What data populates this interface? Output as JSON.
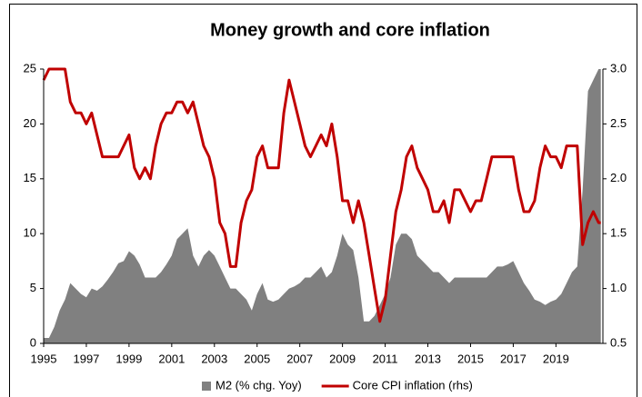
{
  "chart_data": {
    "type": "area-line",
    "title": "Money growth and core inflation",
    "x": [
      1995.0,
      1995.25,
      1995.5,
      1995.75,
      1996.0,
      1996.25,
      1996.5,
      1996.75,
      1997.0,
      1997.25,
      1997.5,
      1997.75,
      1998.0,
      1998.25,
      1998.5,
      1998.75,
      1999.0,
      1999.25,
      1999.5,
      1999.75,
      2000.0,
      2000.25,
      2000.5,
      2000.75,
      2001.0,
      2001.25,
      2001.5,
      2001.75,
      2002.0,
      2002.25,
      2002.5,
      2002.75,
      2003.0,
      2003.25,
      2003.5,
      2003.75,
      2004.0,
      2004.25,
      2004.5,
      2004.75,
      2005.0,
      2005.25,
      2005.5,
      2005.75,
      2006.0,
      2006.25,
      2006.5,
      2006.75,
      2007.0,
      2007.25,
      2007.5,
      2007.75,
      2008.0,
      2008.25,
      2008.5,
      2008.75,
      2009.0,
      2009.25,
      2009.5,
      2009.75,
      2010.0,
      2010.25,
      2010.5,
      2010.75,
      2011.0,
      2011.25,
      2011.5,
      2011.75,
      2012.0,
      2012.25,
      2012.5,
      2012.75,
      2013.0,
      2013.25,
      2013.5,
      2013.75,
      2014.0,
      2014.25,
      2014.5,
      2014.75,
      2015.0,
      2015.25,
      2015.5,
      2015.75,
      2016.0,
      2016.25,
      2016.5,
      2016.75,
      2017.0,
      2017.25,
      2017.5,
      2017.75,
      2018.0,
      2018.25,
      2018.5,
      2018.75,
      2019.0,
      2019.25,
      2019.5,
      2019.75,
      2020.0,
      2020.25,
      2020.5,
      2020.75,
      2021.0,
      2021.1
    ],
    "series": [
      {
        "name": "M2 (% chg. Yoy)",
        "color": "#808080",
        "kind": "area",
        "values": [
          0.5,
          0.5,
          1.5,
          3,
          4,
          5.5,
          5,
          4.5,
          4.2,
          5,
          4.8,
          5.2,
          5.8,
          6.5,
          7.3,
          7.5,
          8.4,
          8,
          7.2,
          6,
          6,
          6,
          6.5,
          7.2,
          8,
          9.5,
          10,
          10.5,
          8,
          7,
          8,
          8.5,
          8,
          7,
          6,
          5,
          5,
          4.5,
          4,
          3,
          4.5,
          5.5,
          4,
          3.8,
          4,
          4.5,
          5,
          5.2,
          5.5,
          6,
          6,
          6.5,
          7,
          6,
          6.5,
          8,
          10,
          9,
          8.5,
          6,
          2,
          2,
          2.5,
          3.5,
          4.5,
          6,
          9,
          10,
          10,
          9.5,
          8,
          7.5,
          7,
          6.5,
          6.5,
          6,
          5.5,
          6,
          6,
          6,
          6,
          6,
          6,
          6,
          6.5,
          7,
          7,
          7.2,
          7.5,
          6.5,
          5.5,
          4.8,
          4,
          3.8,
          3.5,
          3.8,
          4,
          4.5,
          5.5,
          6.5,
          7,
          14,
          23,
          24,
          25,
          25
        ]
      },
      {
        "name": "Core CPI inflation (rhs)",
        "color": "#c00000",
        "kind": "line",
        "axis": "y2",
        "values": [
          2.9,
          3.0,
          3.0,
          3.0,
          3.0,
          2.7,
          2.6,
          2.6,
          2.5,
          2.6,
          2.4,
          2.2,
          2.2,
          2.2,
          2.2,
          2.3,
          2.4,
          2.1,
          2.0,
          2.1,
          2.0,
          2.3,
          2.5,
          2.6,
          2.6,
          2.7,
          2.7,
          2.6,
          2.7,
          2.5,
          2.3,
          2.2,
          2.0,
          1.6,
          1.5,
          1.2,
          1.2,
          1.6,
          1.8,
          1.9,
          2.2,
          2.3,
          2.1,
          2.1,
          2.1,
          2.6,
          2.9,
          2.7,
          2.5,
          2.3,
          2.2,
          2.3,
          2.4,
          2.3,
          2.5,
          2.2,
          1.8,
          1.8,
          1.6,
          1.8,
          1.6,
          1.3,
          1.0,
          0.7,
          0.9,
          1.3,
          1.7,
          1.9,
          2.2,
          2.3,
          2.1,
          2.0,
          1.9,
          1.7,
          1.7,
          1.8,
          1.6,
          1.9,
          1.9,
          1.8,
          1.7,
          1.8,
          1.8,
          2.0,
          2.2,
          2.2,
          2.2,
          2.2,
          2.2,
          1.9,
          1.7,
          1.7,
          1.8,
          2.1,
          2.3,
          2.2,
          2.2,
          2.1,
          2.3,
          2.3,
          2.3,
          1.4,
          1.6,
          1.7,
          1.6,
          1.6
        ]
      }
    ],
    "xlim": [
      1995,
      2021.2
    ],
    "xticks": [
      1995,
      1997,
      1999,
      2001,
      2003,
      2005,
      2007,
      2009,
      2011,
      2013,
      2015,
      2017,
      2019
    ],
    "ylim": [
      0,
      25
    ],
    "yticks": [
      0,
      5,
      10,
      15,
      20,
      25
    ],
    "y2lim": [
      0.5,
      3.0
    ],
    "y2ticks": [
      0.5,
      {
        "value": 1,
        "label": "1.0"
      },
      1.5,
      {
        "value": 2,
        "label": "2.0"
      },
      2.5,
      {
        "value": 3,
        "label": "3.0"
      }
    ],
    "legend": "bottom"
  }
}
